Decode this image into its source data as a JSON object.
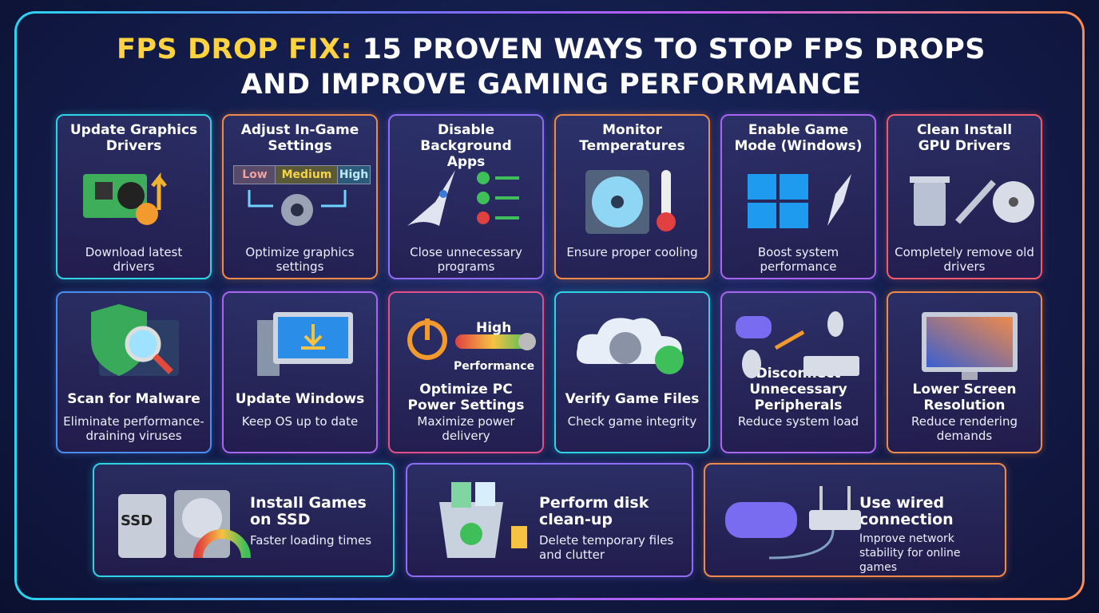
{
  "title": {
    "highlight": "FPS DROP FIX:",
    "rest": "15 PROVEN WAYS TO STOP FPS DROPS AND IMPROVE GAMING PERFORMANCE"
  },
  "cards": [
    {
      "title": "Update Graphics Drivers",
      "description": "Download latest drivers"
    },
    {
      "title": "Adjust In-Game Settings",
      "description": "Optimize graphics settings",
      "icon_labels": [
        "Low",
        "Medium",
        "High"
      ]
    },
    {
      "title": "Disable Background Apps",
      "description": "Close unnecessary programs"
    },
    {
      "title": "Monitor Temperatures",
      "description": "Ensure proper cooling"
    },
    {
      "title": "Enable Game Mode (Windows)",
      "description": "Boost system performance"
    },
    {
      "title": "Clean Install GPU Drivers",
      "description": "Completely remove old drivers"
    },
    {
      "title": "Scan for Malware",
      "description": "Eliminate performance-draining viruses"
    },
    {
      "title": "Update Windows",
      "description": "Keep OS up to date"
    },
    {
      "title": "Optimize PC Power Settings",
      "description": "Maximize power delivery",
      "icon_labels": [
        "High",
        "Performance"
      ]
    },
    {
      "title": "Verify Game Files",
      "description": "Check game integrity"
    },
    {
      "title": "Disconnect Unnecessary Peripherals",
      "description": "Reduce system load"
    },
    {
      "title": "Lower Screen Resolution",
      "description": "Reduce rendering demands"
    },
    {
      "title": "Install Games on SSD",
      "description": "Faster loading times",
      "icon_labels": [
        "SSD"
      ]
    },
    {
      "title": "Perform disk clean-up",
      "description": "Delete temporary files and clutter"
    },
    {
      "title": "Use wired connection",
      "description": "Improve network stability for online games"
    }
  ]
}
